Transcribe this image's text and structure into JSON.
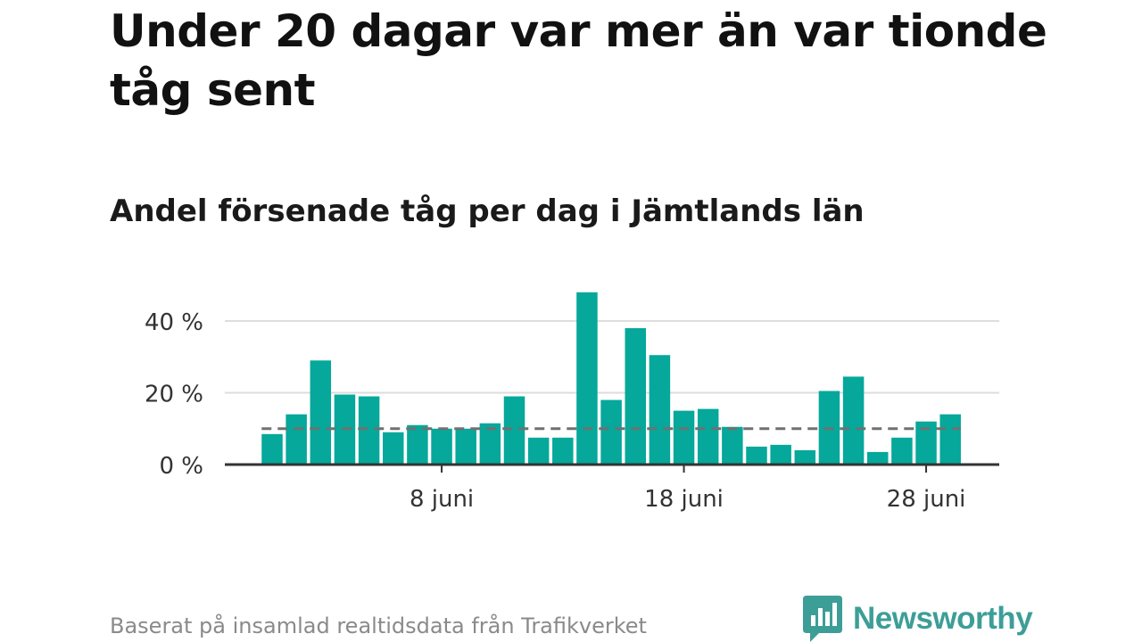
{
  "title": "Under 20 dagar var mer än var tionde tåg sent",
  "subtitle": "Andel försenade tåg per dag i Jämtlands län",
  "footer": "Baserat på insamlad realtidsdata från Trafikverket",
  "brand": {
    "name": "Newsworthy",
    "color": "#3d9e97",
    "icon": "speech-bubble-bar-chart-icon"
  },
  "chart_data": {
    "type": "bar",
    "title": "Andel försenade tåg per dag i Jämtlands län",
    "x": [
      "2025-06-01",
      "2025-06-02",
      "2025-06-03",
      "2025-06-04",
      "2025-06-05",
      "2025-06-06",
      "2025-06-07",
      "2025-06-08",
      "2025-06-09",
      "2025-06-10",
      "2025-06-11",
      "2025-06-12",
      "2025-06-13",
      "2025-06-14",
      "2025-06-15",
      "2025-06-16",
      "2025-06-17",
      "2025-06-18",
      "2025-06-19",
      "2025-06-20",
      "2025-06-21",
      "2025-06-22",
      "2025-06-23",
      "2025-06-24",
      "2025-06-25",
      "2025-06-26",
      "2025-06-27",
      "2025-06-28",
      "2025-06-29"
    ],
    "values": [
      8.5,
      14,
      29,
      19.5,
      19,
      9,
      11,
      10,
      10,
      11.5,
      19,
      7.5,
      7.5,
      48,
      18,
      38,
      30.5,
      15,
      15.5,
      10.5,
      5,
      5.5,
      4,
      20.5,
      24.5,
      3.5,
      7.5,
      12,
      14
    ],
    "ylim": [
      0,
      50
    ],
    "yticks": [
      0,
      20,
      40
    ],
    "ytick_labels": [
      "0 %",
      "20 %",
      "40 %"
    ],
    "xticks": [
      "2025-06-08",
      "2025-06-18",
      "2025-06-28"
    ],
    "xtick_labels": [
      "8 juni",
      "18 juni",
      "28 juni"
    ],
    "reference_line": {
      "value": 10,
      "style": "dashed",
      "color": "#707070"
    },
    "bar_color": "#05a89a",
    "gridlines": true
  }
}
